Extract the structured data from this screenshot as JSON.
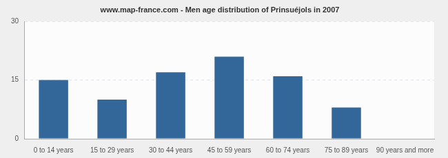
{
  "chart_data": {
    "type": "bar",
    "title": "www.map-france.com - Men age distribution of Prinsuéjols in 2007",
    "categories": [
      "0 to 14 years",
      "15 to 29 years",
      "30 to 44 years",
      "45 to 59 years",
      "60 to 74 years",
      "75 to 89 years",
      "90 years and more"
    ],
    "values": [
      15,
      10,
      17,
      21,
      16,
      8,
      0
    ],
    "color": "#336699",
    "ylim": [
      0,
      30
    ],
    "yticks": [
      0,
      15,
      30
    ],
    "grid": true
  }
}
